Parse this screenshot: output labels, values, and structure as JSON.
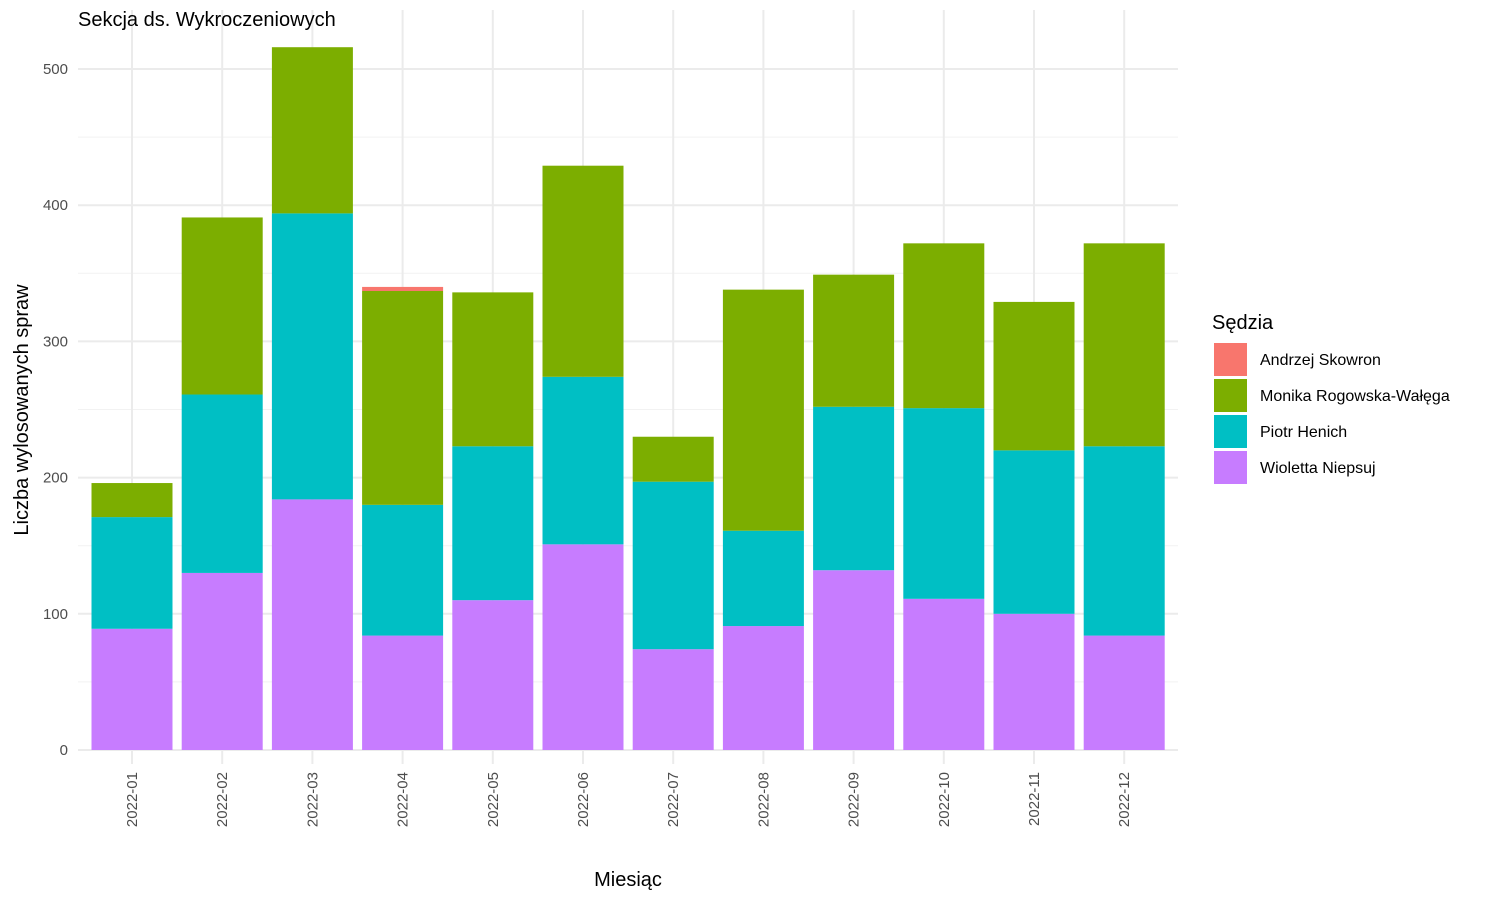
{
  "chart_data": {
    "type": "bar",
    "stacked": true,
    "title": "Sekcja ds. Wykroczeniowych",
    "xlabel": "Miesiąc",
    "ylabel": "Liczba wylosowanych spraw",
    "ylim": [
      0,
      530
    ],
    "yticks": [
      0,
      100,
      200,
      300,
      400,
      500
    ],
    "grid": true,
    "legend_position": "right",
    "legend_title": "Sędzia",
    "categories": [
      "2022-01",
      "2022-02",
      "2022-03",
      "2022-04",
      "2022-05",
      "2022-06",
      "2022-07",
      "2022-08",
      "2022-09",
      "2022-10",
      "2022-11",
      "2022-12"
    ],
    "series": [
      {
        "name": "Andrzej Skowron",
        "color": "#F8766D",
        "values": [
          0,
          0,
          0,
          3,
          0,
          0,
          0,
          0,
          0,
          0,
          0,
          0
        ]
      },
      {
        "name": "Monika Rogowska-Wałęga",
        "color": "#7CAE00",
        "values": [
          25,
          130,
          122,
          157,
          113,
          155,
          33,
          177,
          97,
          121,
          109,
          149
        ]
      },
      {
        "name": "Piotr Henich",
        "color": "#00BFC4",
        "values": [
          82,
          131,
          210,
          96,
          113,
          123,
          123,
          70,
          120,
          140,
          120,
          139
        ]
      },
      {
        "name": "Wioletta Niepsuj",
        "color": "#C77CFF",
        "values": [
          89,
          130,
          184,
          84,
          110,
          151,
          74,
          91,
          132,
          111,
          100,
          84
        ]
      }
    ]
  }
}
